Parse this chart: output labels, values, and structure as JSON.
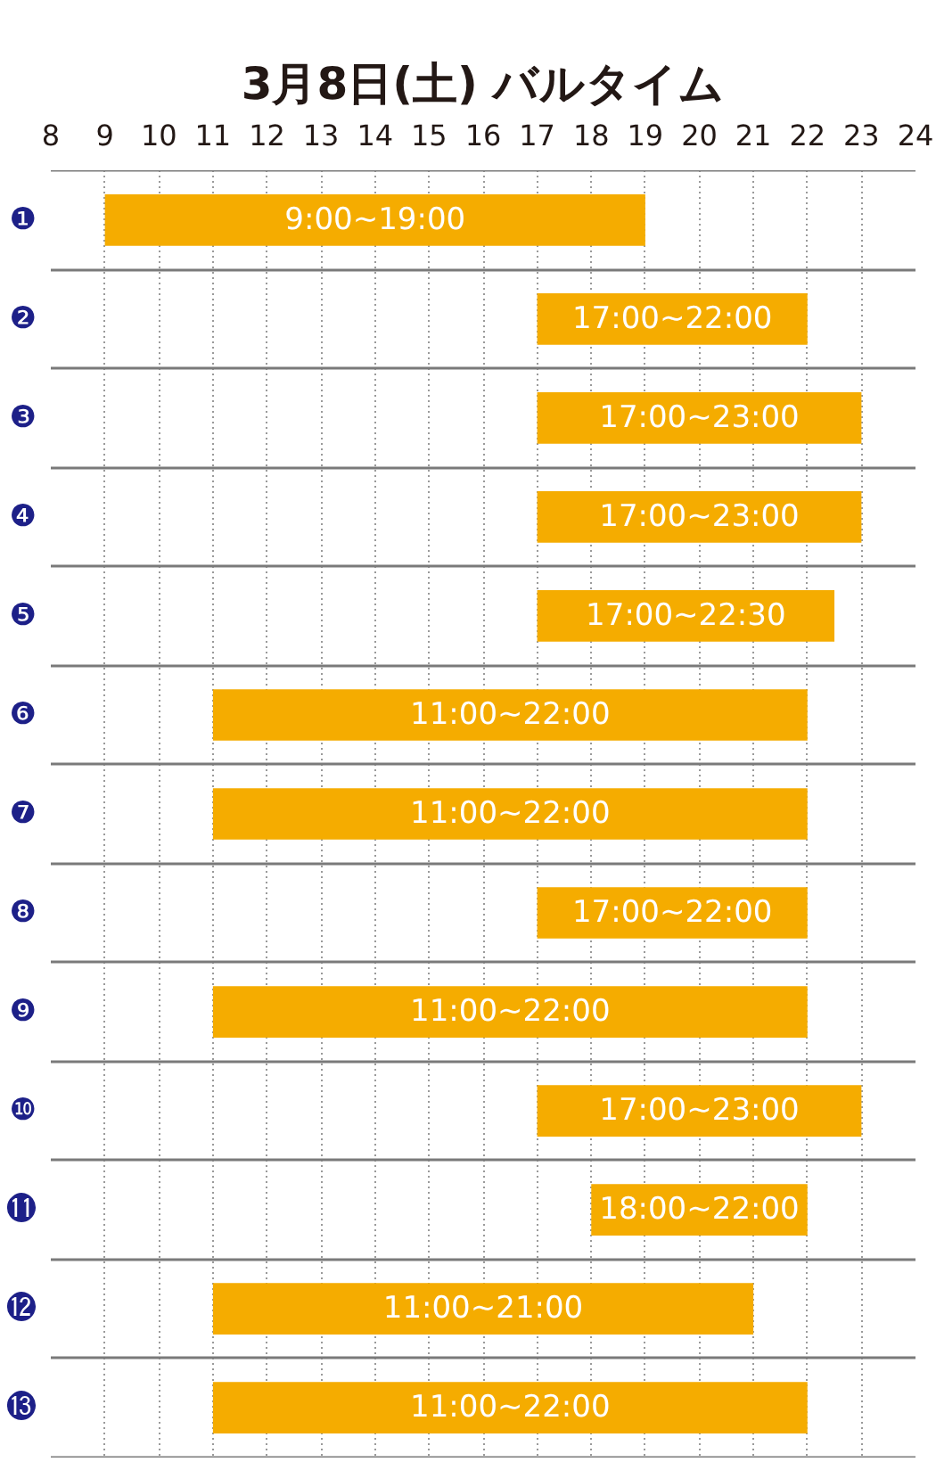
{
  "chart_data": {
    "type": "bar",
    "orientation": "horizontal",
    "title": "3月8日(土) バルタイム",
    "categories": [
      "❶",
      "❷",
      "❸",
      "❹",
      "❺",
      "❻",
      "❼",
      "❽",
      "❾",
      "❿",
      "⓫",
      "⓬",
      "⓭"
    ],
    "base": [
      9,
      17,
      17,
      17,
      17,
      11,
      11,
      17,
      11,
      17,
      18,
      11,
      11
    ],
    "values": [
      10,
      5,
      6,
      6,
      5.5,
      11,
      11,
      5,
      11,
      6,
      4,
      10,
      11
    ],
    "value_labels": [
      "9:00~19:00",
      "17:00~22:00",
      "17:00~23:00",
      "17:00~23:00",
      "17:00~22:30",
      "11:00~22:00",
      "11:00~22:00",
      "17:00~22:00",
      "11:00~22:00",
      "17:00~23:00",
      "18:00~22:00",
      "11:00~21:00",
      "11:00~22:00"
    ],
    "color": "#f5ac00",
    "xlim": [
      8,
      24
    ],
    "xticks": [
      8,
      9,
      10,
      11,
      12,
      13,
      14,
      15,
      16,
      17,
      18,
      19,
      20,
      21,
      22,
      23,
      24
    ],
    "grid": true
  }
}
